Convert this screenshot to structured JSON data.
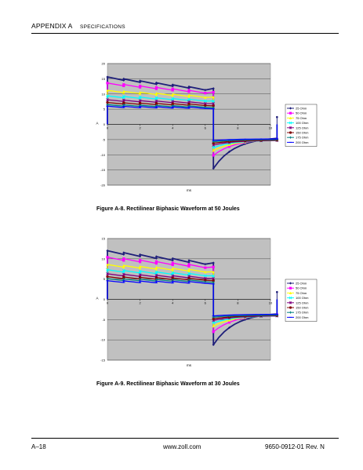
{
  "header": {
    "appendix": "APPENDIX A",
    "section": "SPECIFICATIONS"
  },
  "figures": [
    {
      "caption": "Figure A-8.    Rectilinear Biphasic Waveform at 50 Joules",
      "chart_data": {
        "type": "line",
        "xlabel": "ms",
        "ylabel": "A",
        "xlim": [
          0,
          10
        ],
        "ylim": [
          -20,
          20
        ],
        "xticks": [
          0,
          2,
          4,
          6,
          8,
          10
        ],
        "yticks": [
          -20,
          -15,
          -10,
          -5,
          0,
          5,
          10,
          15,
          20
        ],
        "grid": true,
        "legend_position": "right",
        "series": [
          {
            "name": "25 Ohm",
            "color": "#1f1f7a",
            "marker": "diamond",
            "phase1_start": 15.6,
            "phase1_end": 12.4,
            "phase2_start": -14.5,
            "phase2_end": -4.6
          },
          {
            "name": "50 Ohm",
            "color": "#ff00ff",
            "marker": "square",
            "phase1_start": 13.6,
            "phase1_end": 11.2,
            "phase2_start": -10.2,
            "phase2_end": -5.0
          },
          {
            "name": "75 Ohm",
            "color": "#ffff00",
            "marker": "triangle",
            "phase1_start": 11.2,
            "phase1_end": 9.6,
            "phase2_start": -8.6,
            "phase2_end": -5.2
          },
          {
            "name": "100 Ohm",
            "color": "#00ffff",
            "marker": "x",
            "phase1_start": 9.4,
            "phase1_end": 8.3,
            "phase2_start": -7.6,
            "phase2_end": -5.3
          },
          {
            "name": "125 Ohm",
            "color": "#800080",
            "marker": "star",
            "phase1_start": 8.1,
            "phase1_end": 7.4,
            "phase2_start": -6.8,
            "phase2_end": -5.3
          },
          {
            "name": "150 Ohm",
            "color": "#800000",
            "marker": "circle",
            "phase1_start": 7.2,
            "phase1_end": 6.7,
            "phase2_start": -6.2,
            "phase2_end": -5.2
          },
          {
            "name": "175 Ohm",
            "color": "#008080",
            "marker": "plus",
            "phase1_start": 6.5,
            "phase1_end": 6.1,
            "phase2_start": -5.7,
            "phase2_end": -5.0
          },
          {
            "name": "200 Ohm",
            "color": "#0000ff",
            "marker": "dash",
            "phase1_start": 6.0,
            "phase1_end": 5.7,
            "phase2_start": -5.3,
            "phase2_end": -4.8
          }
        ]
      }
    },
    {
      "caption": "Figure A-9.    Rectilinear Biphasic Waveform at 30 Joules",
      "chart_data": {
        "type": "line",
        "xlabel": "ms",
        "ylabel": "A",
        "xlim": [
          0,
          10
        ],
        "ylim": [
          -15,
          15
        ],
        "xticks": [
          0,
          2,
          4,
          6,
          8,
          10
        ],
        "yticks": [
          -15,
          -10,
          -5,
          0,
          5,
          10,
          15
        ],
        "grid": true,
        "legend_position": "right",
        "series": [
          {
            "name": "25 Ohm",
            "color": "#1f1f7a",
            "marker": "diamond",
            "phase1_start": 12.0,
            "phase1_end": 9.6,
            "phase2_start": -11.2,
            "phase2_end": -3.6
          },
          {
            "name": "50 Ohm",
            "color": "#ff00ff",
            "marker": "square",
            "phase1_start": 10.4,
            "phase1_end": 8.6,
            "phase2_start": -8.0,
            "phase2_end": -3.8
          },
          {
            "name": "75 Ohm",
            "color": "#ffff00",
            "marker": "triangle",
            "phase1_start": 8.6,
            "phase1_end": 7.4,
            "phase2_start": -6.6,
            "phase2_end": -4.0
          },
          {
            "name": "100 Ohm",
            "color": "#00ffff",
            "marker": "x",
            "phase1_start": 7.3,
            "phase1_end": 6.4,
            "phase2_start": -5.8,
            "phase2_end": -4.1
          },
          {
            "name": "125 Ohm",
            "color": "#800080",
            "marker": "star",
            "phase1_start": 6.3,
            "phase1_end": 5.7,
            "phase2_start": -5.2,
            "phase2_end": -4.1
          },
          {
            "name": "150 Ohm",
            "color": "#800000",
            "marker": "circle",
            "phase1_start": 5.6,
            "phase1_end": 5.2,
            "phase2_start": -4.8,
            "phase2_end": -4.0
          },
          {
            "name": "175 Ohm",
            "color": "#008080",
            "marker": "plus",
            "phase1_start": 5.1,
            "phase1_end": 4.8,
            "phase2_start": -4.4,
            "phase2_end": -3.9
          },
          {
            "name": "200 Ohm",
            "color": "#0000ff",
            "marker": "dash",
            "phase1_start": 4.6,
            "phase1_end": 4.4,
            "phase2_start": -4.1,
            "phase2_end": -3.7
          }
        ]
      }
    }
  ],
  "footer": {
    "page": "A–18",
    "url": "www.zoll.com",
    "doc": "9650-0912-01 Rev. N"
  }
}
